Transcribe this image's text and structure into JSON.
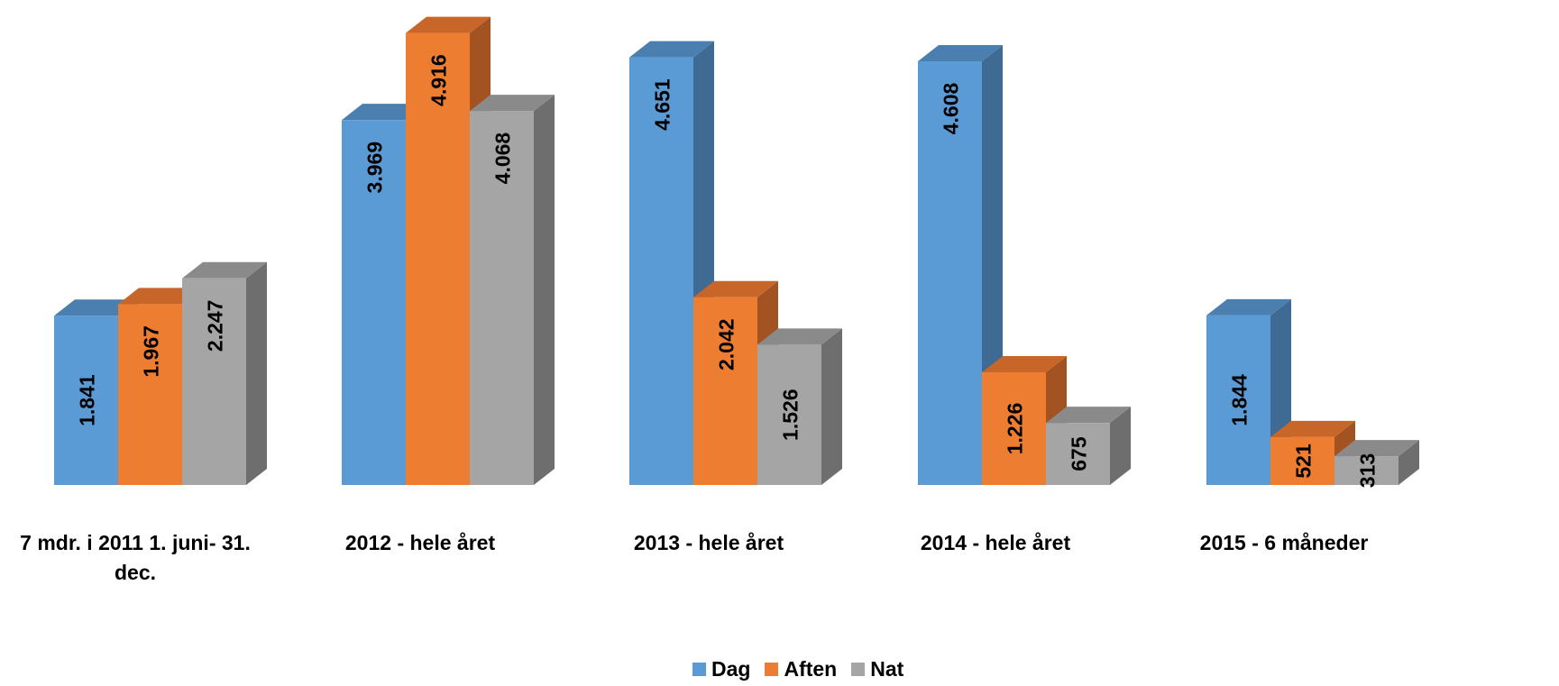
{
  "chart_data": {
    "type": "bar",
    "style": "3d-clustered-column",
    "categories": [
      "7 mdr. i 2011 1. juni- 31. dec.",
      "2012 - hele året",
      "2013 - hele året",
      "2014 - hele året",
      "2015 - 6 måneder"
    ],
    "series": [
      {
        "name": "Dag",
        "color": "#5B9BD5",
        "side": "#3E6A93",
        "top": "#4A7FB0",
        "values": [
          1841,
          3969,
          4651,
          4608,
          1844
        ],
        "labels": [
          "1.841",
          "3.969",
          "4.651",
          "4.608",
          "1.844"
        ]
      },
      {
        "name": "Aften",
        "color": "#ED7D31",
        "side": "#A35322",
        "top": "#C8662A",
        "values": [
          1967,
          4916,
          2042,
          1226,
          521
        ],
        "labels": [
          "1.967",
          "4.916",
          "2.042",
          "1.226",
          "521"
        ]
      },
      {
        "name": "Nat",
        "color": "#A5A5A5",
        "side": "#6E6E6E",
        "top": "#8A8A8A",
        "values": [
          2247,
          4068,
          1526,
          675,
          313
        ],
        "labels": [
          "2.247",
          "4.068",
          "1.526",
          "675",
          "313"
        ]
      }
    ],
    "title": "",
    "xlabel": "",
    "ylabel": "",
    "ylim": [
      0,
      5000
    ],
    "grid": false,
    "legend_position": "bottom",
    "data_labels": "inside-rotated"
  }
}
